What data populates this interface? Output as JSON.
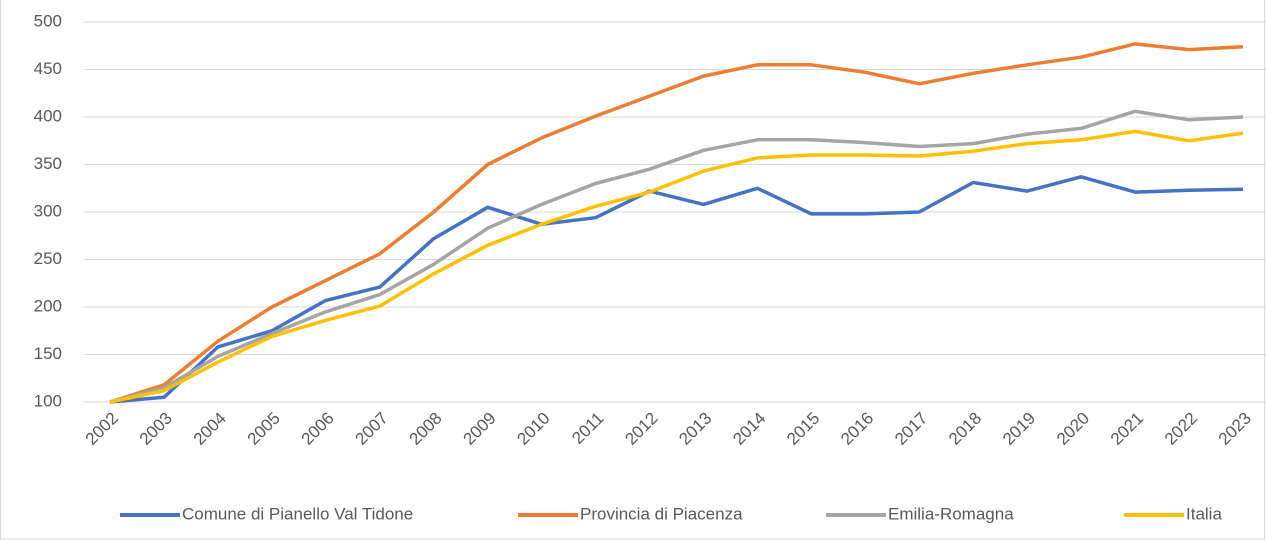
{
  "chart_data": {
    "type": "line",
    "categories": [
      "2002",
      "2003",
      "2004",
      "2005",
      "2006",
      "2007",
      "2008",
      "2009",
      "2010",
      "2011",
      "2012",
      "2013",
      "2014",
      "2015",
      "2016",
      "2017",
      "2018",
      "2019",
      "2020",
      "2021",
      "2022",
      "2023"
    ],
    "series": [
      {
        "name": "Comune di Pianello Val Tidone",
        "color": "#4472c4",
        "values": [
          100,
          105,
          158,
          175,
          207,
          221,
          272,
          305,
          287,
          294,
          322,
          308,
          325,
          298,
          298,
          300,
          331,
          322,
          337,
          321,
          323,
          324
        ]
      },
      {
        "name": "Provincia di Piacenza",
        "color": "#ed7d31",
        "values": [
          100,
          118,
          164,
          200,
          228,
          256,
          300,
          350,
          378,
          401,
          422,
          443,
          455,
          455,
          447,
          435,
          446,
          455,
          463,
          477,
          471,
          474
        ]
      },
      {
        "name": "Emilia-Romagna",
        "color": "#a5a5a5",
        "values": [
          100,
          115,
          148,
          172,
          195,
          213,
          245,
          283,
          308,
          330,
          345,
          365,
          376,
          376,
          373,
          369,
          372,
          382,
          388,
          406,
          397,
          400
        ]
      },
      {
        "name": "Italia",
        "color": "#ffc000",
        "values": [
          100,
          112,
          142,
          169,
          186,
          201,
          235,
          265,
          287,
          306,
          321,
          343,
          357,
          360,
          360,
          359,
          364,
          372,
          376,
          385,
          375,
          383
        ]
      }
    ],
    "ylim": [
      100,
      500
    ],
    "yticks": [
      100,
      150,
      200,
      250,
      300,
      350,
      400,
      450,
      500
    ],
    "grid": true,
    "legend": "bottom"
  }
}
